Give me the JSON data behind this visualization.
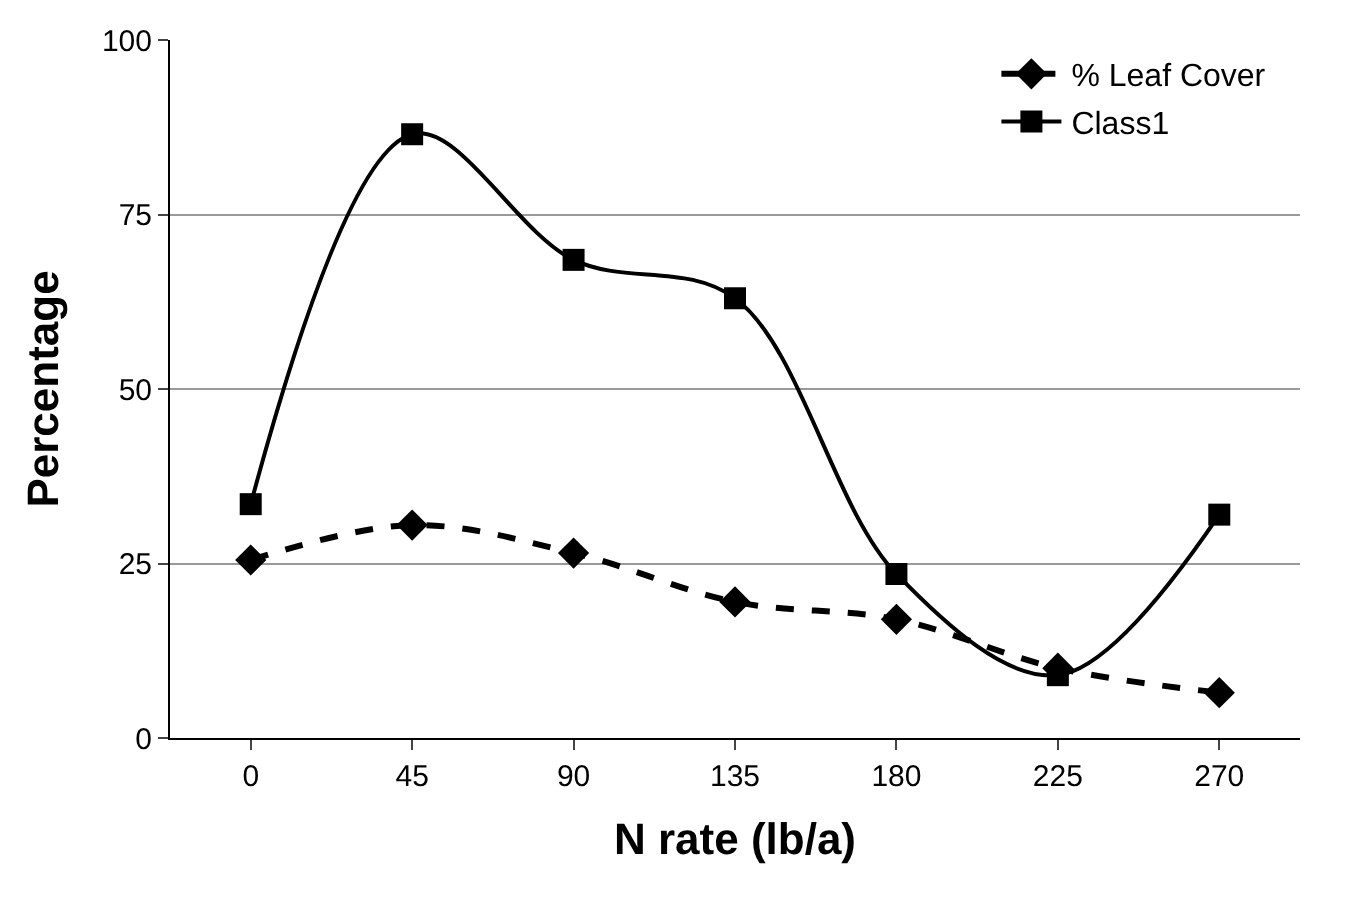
{
  "chart_data": {
    "type": "line",
    "xlabel": "N rate (lb/a)",
    "ylabel": "Percentage",
    "categories": [
      "0",
      "45",
      "90",
      "135",
      "180",
      "225",
      "270"
    ],
    "series": [
      {
        "name": "% Leaf Cover",
        "color": "#000000",
        "marker": "diamond",
        "line_style": "dashed",
        "values": [
          25.5,
          30.5,
          26.5,
          19.5,
          17,
          10,
          6.5
        ]
      },
      {
        "name": "Class1",
        "color": "#000000",
        "marker": "square",
        "line_style": "solid",
        "values": [
          33.5,
          86.5,
          68.5,
          63,
          23.5,
          9,
          32
        ]
      }
    ],
    "ylim": [
      0,
      100
    ],
    "yticks": [
      0,
      25,
      50,
      75,
      100
    ],
    "grid": "y",
    "legend": "top right"
  }
}
